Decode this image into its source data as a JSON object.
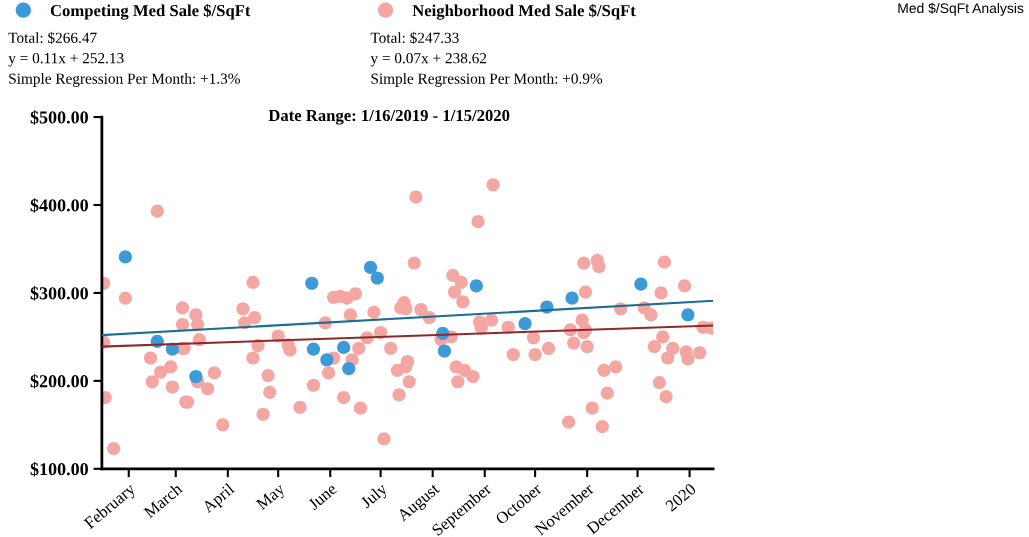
{
  "chart_data": {
    "type": "scatter",
    "title": "Date Range: 1/16/2019 - 1/15/2020",
    "annotations": [
      "Total: $266.47",
      "y = 0.11x + 252.13",
      "Simple Regression Per Month: +1.3%",
      "Total: $247.33",
      "y = 0.07x + 238.62",
      "Simple Regression Per Month: +0.9%",
      "Med $/SqFt Analysis"
    ],
    "series": [
      {
        "name": "Neighborhood Med Sale $/SqFt",
        "color": "#f4a6a2",
        "marker": "circle",
        "x": [
          "2019-01-17",
          "2019-01-30",
          "2019-01-17",
          "2019-01-18",
          "2019-01-23",
          "2019-02-18",
          "2019-02-14",
          "2019-02-15",
          "2019-02-20",
          "2019-02-26",
          "2019-02-27",
          "2019-03-05",
          "2019-03-05",
          "2019-03-05",
          "2019-03-06",
          "2019-03-07",
          "2019-03-08",
          "2019-03-13",
          "2019-03-14",
          "2019-03-15",
          "2019-03-14",
          "2019-03-20",
          "2019-03-24",
          "2019-03-29",
          "2019-04-10",
          "2019-04-11",
          "2019-04-16",
          "2019-04-17",
          "2019-04-19",
          "2019-04-16",
          "2019-04-25",
          "2019-04-26",
          "2019-04-22",
          "2019-05-01",
          "2019-05-07",
          "2019-05-08",
          "2019-05-14",
          "2019-05-22",
          "2019-05-29",
          "2019-05-31",
          "2019-06-03",
          "2019-06-03",
          "2019-06-07",
          "2019-06-11",
          "2019-06-16",
          "2019-06-13",
          "2019-06-09",
          "2019-06-14",
          "2019-06-18",
          "2019-06-19",
          "2019-06-23",
          "2019-06-27",
          "2019-07-01",
          "2019-07-03",
          "2019-07-07",
          "2019-07-11",
          "2019-07-12",
          "2019-07-13",
          "2019-07-15",
          "2019-07-16",
          "2019-07-17",
          "2019-07-16",
          "2019-07-18",
          "2019-07-21",
          "2019-07-22",
          "2019-07-25",
          "2019-07-30",
          "2019-08-13",
          "2019-08-18",
          "2019-08-14",
          "2019-08-19",
          "2019-08-12",
          "2019-08-06",
          "2019-08-15",
          "2019-08-20",
          "2019-08-16",
          "2019-08-25",
          "2019-08-28",
          "2019-09-06",
          "2019-08-29",
          "2019-08-30",
          "2019-09-05",
          "2019-09-15",
          "2019-09-18",
          "2019-09-30",
          "2019-10-01",
          "2019-10-09",
          "2019-10-22",
          "2019-10-24",
          "2019-10-30",
          "2019-10-31",
          "2019-10-29",
          "2019-10-31",
          "2019-11-01",
          "2019-10-30",
          "2019-10-21",
          "2019-11-07",
          "2019-11-08",
          "2019-11-04",
          "2019-11-10",
          "2019-11-13",
          "2019-11-11",
          "2019-11-18",
          "2019-11-21",
          "2019-12-05",
          "2019-12-09",
          "2019-12-17",
          "2019-12-15",
          "2019-12-29",
          "2019-12-16",
          "2019-12-11",
          "2019-12-22",
          "2019-12-19",
          "2019-12-30",
          "2019-12-31",
          "2020-01-07",
          "2019-12-14",
          "2019-12-18",
          "2020-01-09",
          "2020-01-14"
        ],
        "values": [
          311,
          294,
          244,
          181,
          123,
          393,
          226,
          199,
          210,
          216,
          193,
          283,
          264,
          237,
          237,
          176,
          176,
          275,
          264,
          247,
          199,
          191,
          209,
          150,
          282,
          266,
          312,
          272,
          240,
          226,
          206,
          187,
          162,
          251,
          241,
          235,
          170,
          195,
          266,
          209,
          226,
          295,
          296,
          294,
          299,
          275,
          181,
          224,
          237,
          169,
          249,
          278,
          255,
          134,
          237,
          212,
          184,
          283,
          289,
          282,
          222,
          216,
          199,
          334,
          409,
          281,
          272,
          320,
          312,
          301,
          290,
          250,
          247,
          216,
          212,
          199,
          205,
          381,
          423,
          267,
          260,
          269,
          261,
          230,
          249,
          230,
          237,
          258,
          243,
          334,
          301,
          269,
          258,
          239,
          255,
          153,
          337,
          330,
          169,
          148,
          186,
          212,
          216,
          282,
          283,
          275,
          335,
          300,
          308,
          250,
          239,
          237,
          226,
          233,
          225,
          232,
          198,
          182,
          261,
          260
        ]
      },
      {
        "name": "Competing Med Sale $/SqFt",
        "color": "#3d9ad9",
        "marker": "circle",
        "x": [
          "2019-01-30",
          "2019-02-18",
          "2019-02-27",
          "2019-03-13",
          "2019-05-21",
          "2019-05-22",
          "2019-05-30",
          "2019-06-09",
          "2019-06-12",
          "2019-06-25",
          "2019-06-29",
          "2019-08-07",
          "2019-08-08",
          "2019-08-27",
          "2019-09-25",
          "2019-10-08",
          "2019-10-23",
          "2019-12-03",
          "2019-12-31"
        ],
        "values": [
          341,
          245,
          236,
          205,
          311,
          236,
          224,
          238,
          214,
          329,
          317,
          254,
          234,
          308,
          265,
          284,
          294,
          310,
          275
        ]
      },
      {
        "color": "#1c6f8f",
        "type": "line",
        "x": [
          "2019-01-16",
          "2020-01-15"
        ],
        "values": [
          252,
          291
        ]
      },
      {
        "color": "#8e2a2a",
        "type": "line",
        "x": [
          "2019-01-16",
          "2020-01-15"
        ],
        "values": [
          239,
          263
        ]
      }
    ],
    "xlim": [
      "2019-01-16",
      "2020-01-15"
    ],
    "xticks": [
      {
        "value": "2019-02-01",
        "label": "February"
      },
      {
        "value": "2019-03-01",
        "label": "March"
      },
      {
        "value": "2019-04-01",
        "label": "April"
      },
      {
        "value": "2019-05-01",
        "label": "May"
      },
      {
        "value": "2019-06-01",
        "label": "June"
      },
      {
        "value": "2019-07-01",
        "label": "July"
      },
      {
        "value": "2019-08-01",
        "label": "August"
      },
      {
        "value": "2019-09-01",
        "label": "September"
      },
      {
        "value": "2019-10-01",
        "label": "October"
      },
      {
        "value": "2019-11-01",
        "label": "November"
      },
      {
        "value": "2019-12-01",
        "label": "December"
      },
      {
        "value": "2020-01-01",
        "label": "2020"
      }
    ],
    "ylim": [
      100,
      500
    ],
    "yticks": [
      {
        "value": 100,
        "label": "$100.00"
      },
      {
        "value": 200,
        "label": "$200.00"
      },
      {
        "value": 300,
        "label": "$300.00"
      },
      {
        "value": 400,
        "label": "$400.00"
      },
      {
        "value": 500,
        "label": "$500.00"
      }
    ],
    "legend": "top left",
    "grid": false
  }
}
